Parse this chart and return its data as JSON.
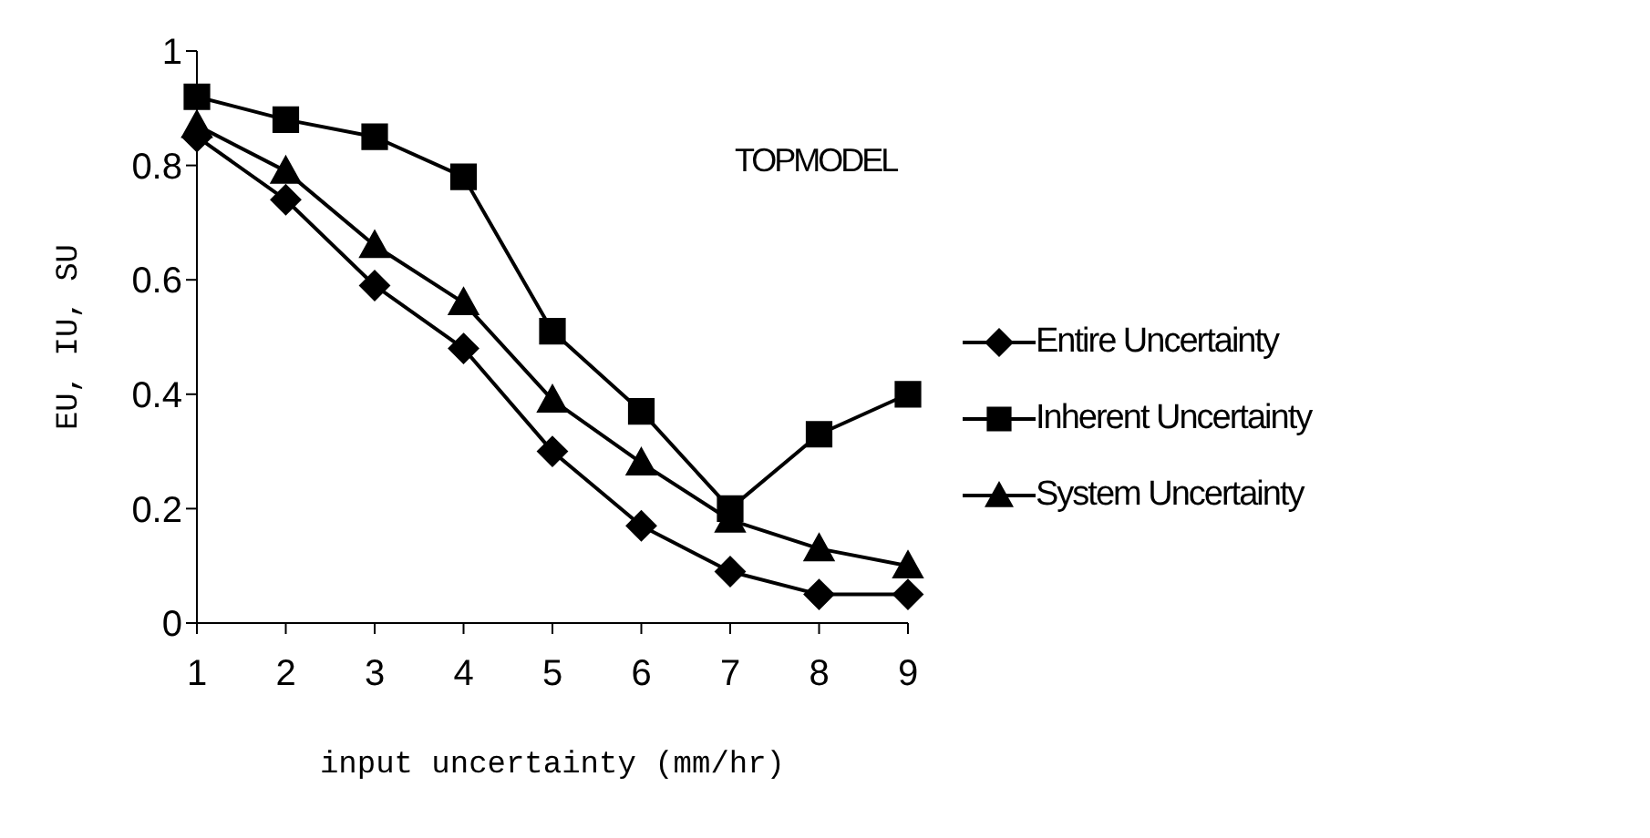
{
  "chart_data": {
    "type": "line",
    "xlabel": "input uncertainty (mm/hr)",
    "ylabel": "EU, IU, SU",
    "annotations": [
      "TOPMODEL"
    ],
    "categories": [
      "1",
      "2",
      "3",
      "4",
      "5",
      "6",
      "7",
      "8",
      "9"
    ],
    "series": [
      {
        "name": "Entire Uncertainty",
        "color": "#000000",
        "marker": "diamond",
        "values": [
          0.85,
          0.74,
          0.59,
          0.48,
          0.3,
          0.17,
          0.09,
          0.05,
          0.05
        ]
      },
      {
        "name": "Inherent Uncertainty",
        "color": "#000000",
        "marker": "square",
        "values": [
          0.92,
          0.88,
          0.85,
          0.78,
          0.51,
          0.37,
          0.2,
          0.33,
          0.4
        ]
      },
      {
        "name": "System Uncertainty",
        "color": "#000000",
        "marker": "triangle",
        "values": [
          0.87,
          0.79,
          0.66,
          0.56,
          0.39,
          0.28,
          0.18,
          0.13,
          0.1
        ]
      }
    ],
    "ylim": [
      0,
      1
    ],
    "yticks": [
      0,
      0.2,
      0.4,
      0.6,
      0.8,
      1
    ],
    "grid": false,
    "legend": "right",
    "line_style": "solid"
  }
}
